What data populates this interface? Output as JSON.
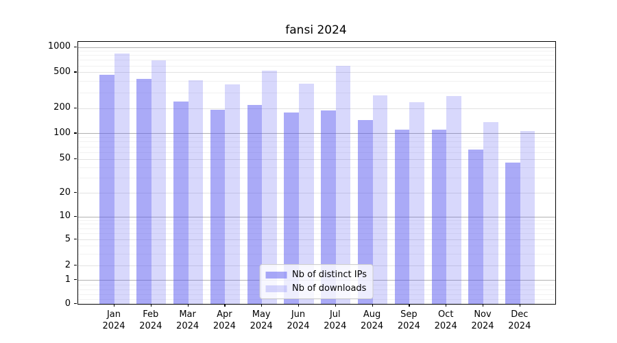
{
  "title": "fansi 2024",
  "colors": {
    "accent": "#5555F0",
    "bar_distinct_ips": "rgba(85,85,240,0.5)",
    "bar_downloads": "rgba(85,85,240,0.23)",
    "grid_major": "#b0b0b0",
    "grid_minor": "#e2e2e2"
  },
  "chart_data": {
    "type": "bar",
    "title": "fansi 2024",
    "categories": [
      "Jan 2024",
      "Feb 2024",
      "Mar 2024",
      "Apr 2024",
      "May 2024",
      "Jun 2024",
      "Jul 2024",
      "Aug 2024",
      "Sep 2024",
      "Oct 2024",
      "Nov 2024",
      "Dec 2024"
    ],
    "series": [
      {
        "name": "Nb of distinct IPs",
        "color": "rgba(85,85,240,0.5)",
        "values": [
          470,
          425,
          238,
          190,
          219,
          176,
          188,
          145,
          110,
          110,
          64,
          45
        ]
      },
      {
        "name": "Nb of downloads",
        "color": "rgba(85,85,240,0.23)",
        "values": [
          830,
          690,
          405,
          370,
          520,
          374,
          595,
          280,
          235,
          274,
          136,
          107
        ]
      }
    ],
    "xlabel": "",
    "ylabel": "",
    "yscale": "symlog",
    "ylim": [
      0,
      1000
    ],
    "y_ticks": [
      0,
      1,
      2,
      5,
      10,
      20,
      50,
      100,
      200,
      500,
      1000
    ],
    "grid": "both",
    "legend_position": "lower center",
    "legend_entries": [
      "Nb of distinct IPs",
      "Nb of downloads"
    ]
  }
}
